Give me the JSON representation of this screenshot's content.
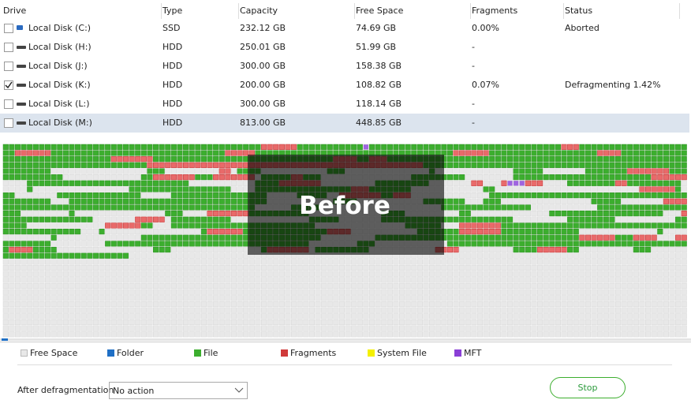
{
  "table": {
    "columns": [
      "Drive",
      "Type",
      "Capacity",
      "Free Space",
      "Fragments",
      "Status"
    ],
    "rows": [
      [
        "Local Disk (C:)",
        "SSD",
        "232.12 GB",
        "74.69 GB",
        "0.00%",
        "Aborted"
      ],
      [
        "Local Disk (H:)",
        "HDD",
        "250.01 GB",
        "51.99 GB",
        "-"
      ],
      [
        "Local Disk (J:)",
        "HDD",
        "300.00 GB",
        "158.38 GB",
        "-"
      ],
      [
        "Local Disk (K:)",
        "HDD",
        "200.00 GB",
        "108.82 GB",
        "0.07%",
        "Defragmenting 1.42%"
      ],
      [
        "Local Disk (L:)",
        "HDD",
        "300.00 GB",
        "118.14 GB",
        "-"
      ],
      [
        "Local Disk (M:)",
        "HDD",
        "813.00 GB",
        "448.85 GB",
        "-"
      ]
    ]
  },
  "disk_map": {
    "overlay_label": "Before"
  },
  "legend": [
    {
      "label": "Free Space",
      "color": "#e8e8e8"
    },
    {
      "label": "Folder",
      "color": "#1f6fc5"
    },
    {
      "label": "File",
      "color": "#3cae2e"
    },
    {
      "label": "Fragments",
      "color": "#d03a3a"
    },
    {
      "label": "System File",
      "color": "#f4f000"
    },
    {
      "label": "MFT",
      "color": "#8a3fd6"
    }
  ],
  "footer": {
    "after_label": "After defragmentation",
    "after_value": "No action",
    "stop_button": "Stop"
  }
}
